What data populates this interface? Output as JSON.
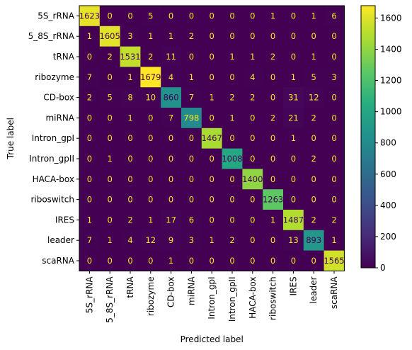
{
  "chart_data": {
    "type": "heatmap",
    "title": "",
    "xlabel": "Predicted label",
    "ylabel": "True label",
    "labels": [
      "5S_rRNA",
      "5_8S_rRNA",
      "tRNA",
      "ribozyme",
      "CD-box",
      "miRNA",
      "Intron_gpI",
      "Intron_gpII",
      "HACA-box",
      "riboswitch",
      "IRES",
      "leader",
      "scaRNA"
    ],
    "matrix": [
      [
        1623,
        0,
        0,
        5,
        0,
        0,
        0,
        0,
        0,
        1,
        0,
        1,
        6
      ],
      [
        1,
        1605,
        3,
        1,
        1,
        2,
        0,
        0,
        0,
        0,
        0,
        0,
        0
      ],
      [
        0,
        2,
        1531,
        2,
        11,
        0,
        0,
        1,
        1,
        2,
        0,
        1,
        0
      ],
      [
        7,
        0,
        1,
        1679,
        4,
        1,
        0,
        0,
        4,
        0,
        1,
        5,
        3
      ],
      [
        2,
        5,
        8,
        10,
        860,
        7,
        1,
        2,
        2,
        0,
        31,
        12,
        0
      ],
      [
        0,
        0,
        1,
        0,
        7,
        798,
        0,
        1,
        0,
        2,
        21,
        2,
        0
      ],
      [
        0,
        0,
        0,
        0,
        0,
        0,
        1467,
        0,
        0,
        0,
        1,
        0,
        0
      ],
      [
        0,
        1,
        0,
        0,
        0,
        0,
        0,
        1008,
        0,
        0,
        0,
        2,
        0
      ],
      [
        0,
        0,
        0,
        0,
        0,
        0,
        0,
        0,
        1400,
        0,
        0,
        0,
        0
      ],
      [
        0,
        0,
        0,
        0,
        0,
        0,
        0,
        0,
        0,
        1263,
        0,
        0,
        0
      ],
      [
        1,
        0,
        2,
        1,
        17,
        6,
        0,
        0,
        0,
        1,
        1487,
        2,
        2
      ],
      [
        7,
        1,
        4,
        12,
        9,
        3,
        1,
        2,
        0,
        0,
        13,
        893,
        1
      ],
      [
        0,
        0,
        0,
        0,
        1,
        0,
        0,
        0,
        0,
        0,
        0,
        0,
        1565
      ]
    ],
    "colormap": "viridis",
    "colorbar": {
      "min": 0,
      "max": 1679,
      "ticks": [
        0,
        200,
        400,
        600,
        800,
        1000,
        1200,
        1400,
        1600
      ]
    }
  }
}
